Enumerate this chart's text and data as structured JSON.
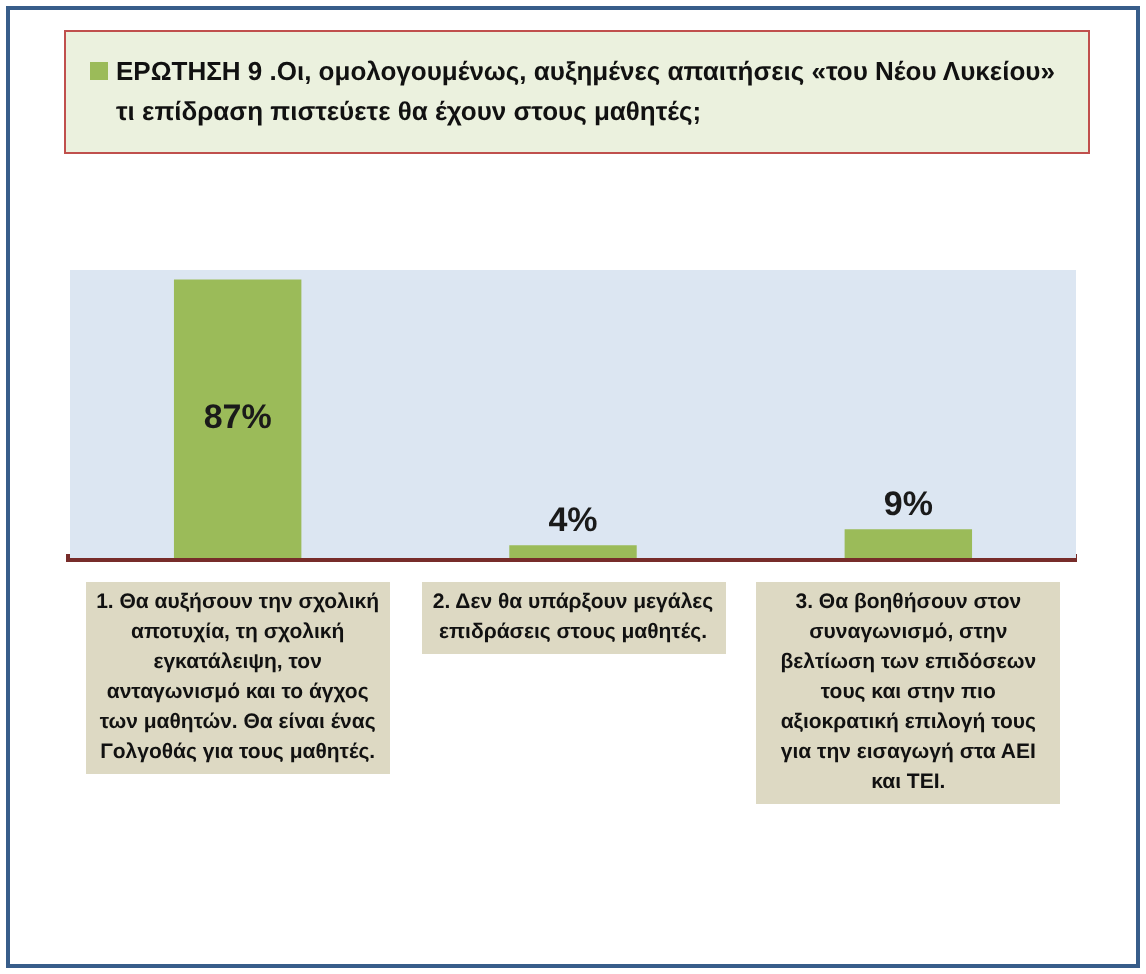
{
  "chart_data": {
    "type": "bar",
    "categories": [
      "1. Θα αυξήσουν την σχολική αποτυχία, τη σχολική εγκατάλειψη, τον ανταγωνισμό και το άγχος των μαθητών. Θα είναι ένας Γολγοθάς για τους μαθητές.",
      "2. Δεν θα υπάρξουν μεγάλες επιδράσεις στους μαθητές.",
      "3. Θα βοηθήσουν στον συναγωνισμό, στην βελτίωση των επιδόσεων τους και στην πιο αξιοκρατική επιλογή τους για την εισαγωγή στα ΑΕΙ και ΤΕΙ."
    ],
    "series": [
      {
        "name": "ΕΡΩΤΗΣΗ 9 .Οι, ομολογουμένως, αυξημένες απαιτήσεις «του Νέου Λυκείου» τι επίδραση πιστεύετε θα έχουν στους μαθητές;",
        "color": "#9bbb59",
        "values": [
          87,
          4,
          9
        ],
        "value_labels": [
          "87%",
          "4%",
          "9%"
        ]
      }
    ],
    "legend": "top",
    "tick_labels": "x"
  }
}
